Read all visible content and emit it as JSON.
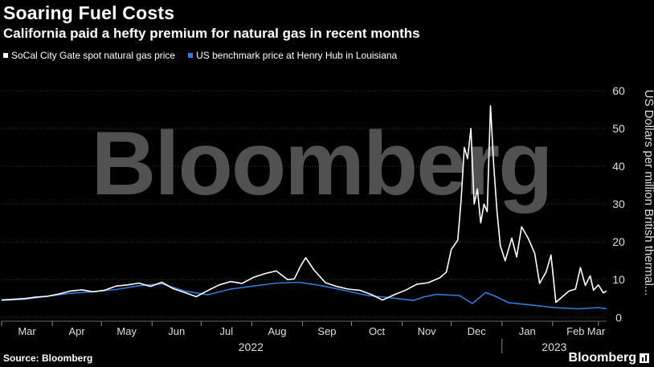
{
  "title": "Soaring Fuel Costs",
  "subtitle": "California paid a hefty premium for natural gas in recent months",
  "source": "Source: Bloomberg",
  "footer_brand": "Bloomberg",
  "watermark": "Bloomberg",
  "colors": {
    "background": "#000000",
    "socal": "#ffffff",
    "henry": "#2f7bdc",
    "grid": "#444444"
  },
  "chart_data": {
    "type": "line",
    "ylabel": "US Dollars per million British thermal...",
    "y_ticks": [
      0,
      10,
      20,
      30,
      40,
      50,
      60
    ],
    "ylim": [
      -1,
      67
    ],
    "x_range": [
      "2022-03-01",
      "2023-03-06"
    ],
    "month_labels": [
      {
        "date": "2022-03-01",
        "label": "Mar"
      },
      {
        "date": "2022-04-01",
        "label": "Apr"
      },
      {
        "date": "2022-05-01",
        "label": "May"
      },
      {
        "date": "2022-06-01",
        "label": "Jun"
      },
      {
        "date": "2022-07-01",
        "label": "Jul"
      },
      {
        "date": "2022-08-01",
        "label": "Aug"
      },
      {
        "date": "2022-09-01",
        "label": "Sep"
      },
      {
        "date": "2022-10-01",
        "label": "Oct"
      },
      {
        "date": "2022-11-01",
        "label": "Nov"
      },
      {
        "date": "2022-12-01",
        "label": "Dec"
      },
      {
        "date": "2023-01-01",
        "label": "Jan"
      },
      {
        "date": "2023-02-01",
        "label": "Feb"
      },
      {
        "date": "2023-03-01",
        "label": "Mar"
      }
    ],
    "year_labels": [
      {
        "from": "2022-03-01",
        "to": "2022-12-31",
        "label": "2022"
      },
      {
        "from": "2023-01-01",
        "to": "2023-03-06",
        "label": "2023"
      }
    ],
    "grid": true,
    "legend_position": "top-left",
    "series": [
      {
        "name": "SoCal City Gate spot natural gas price",
        "color": "#ffffff",
        "points": [
          [
            "2022-03-01",
            4.6
          ],
          [
            "2022-03-08",
            4.8
          ],
          [
            "2022-03-15",
            5.0
          ],
          [
            "2022-03-22",
            5.4
          ],
          [
            "2022-03-29",
            5.6
          ],
          [
            "2022-04-05",
            6.2
          ],
          [
            "2022-04-12",
            7.0
          ],
          [
            "2022-04-19",
            7.3
          ],
          [
            "2022-04-26",
            6.8
          ],
          [
            "2022-05-03",
            7.2
          ],
          [
            "2022-05-10",
            8.3
          ],
          [
            "2022-05-17",
            8.6
          ],
          [
            "2022-05-24",
            9.1
          ],
          [
            "2022-05-31",
            8.2
          ],
          [
            "2022-06-07",
            9.3
          ],
          [
            "2022-06-14",
            7.6
          ],
          [
            "2022-06-21",
            6.6
          ],
          [
            "2022-06-28",
            5.5
          ],
          [
            "2022-07-05",
            7.1
          ],
          [
            "2022-07-12",
            8.6
          ],
          [
            "2022-07-19",
            9.5
          ],
          [
            "2022-07-26",
            9.0
          ],
          [
            "2022-08-02",
            10.6
          ],
          [
            "2022-08-09",
            11.6
          ],
          [
            "2022-08-16",
            12.3
          ],
          [
            "2022-08-23",
            10.0
          ],
          [
            "2022-08-27",
            10.2
          ],
          [
            "2022-08-31",
            13.7
          ],
          [
            "2022-09-03",
            15.8
          ],
          [
            "2022-09-08",
            12.6
          ],
          [
            "2022-09-15",
            9.2
          ],
          [
            "2022-09-22",
            8.2
          ],
          [
            "2022-09-29",
            7.5
          ],
          [
            "2022-10-06",
            7.2
          ],
          [
            "2022-10-13",
            6.1
          ],
          [
            "2022-10-20",
            4.6
          ],
          [
            "2022-10-27",
            6.0
          ],
          [
            "2022-11-03",
            7.2
          ],
          [
            "2022-11-10",
            8.8
          ],
          [
            "2022-11-17",
            9.2
          ],
          [
            "2022-11-24",
            10.5
          ],
          [
            "2022-11-28",
            12.0
          ],
          [
            "2022-12-01",
            18.0
          ],
          [
            "2022-12-03",
            19.2
          ],
          [
            "2022-12-05",
            20.5
          ],
          [
            "2022-12-07",
            31.0
          ],
          [
            "2022-12-09",
            45.0
          ],
          [
            "2022-12-11",
            42.0
          ],
          [
            "2022-12-13",
            50.0
          ],
          [
            "2022-12-15",
            30.0
          ],
          [
            "2022-12-17",
            34.0
          ],
          [
            "2022-12-19",
            25.0
          ],
          [
            "2022-12-21",
            30.0
          ],
          [
            "2022-12-23",
            28.0
          ],
          [
            "2022-12-25",
            56.0
          ],
          [
            "2022-12-27",
            40.0
          ],
          [
            "2022-12-29",
            28.0
          ],
          [
            "2022-12-31",
            19.0
          ],
          [
            "2023-01-03",
            15.0
          ],
          [
            "2023-01-07",
            21.0
          ],
          [
            "2023-01-10",
            16.0
          ],
          [
            "2023-01-13",
            24.0
          ],
          [
            "2023-01-17",
            21.0
          ],
          [
            "2023-01-21",
            17.0
          ],
          [
            "2023-01-24",
            9.0
          ],
          [
            "2023-01-28",
            12.0
          ],
          [
            "2023-01-31",
            16.5
          ],
          [
            "2023-02-03",
            4.0
          ],
          [
            "2023-02-07",
            5.5
          ],
          [
            "2023-02-11",
            7.0
          ],
          [
            "2023-02-15",
            7.5
          ],
          [
            "2023-02-18",
            13.2
          ],
          [
            "2023-02-21",
            8.5
          ],
          [
            "2023-02-24",
            11.0
          ],
          [
            "2023-02-26",
            7.2
          ],
          [
            "2023-03-01",
            8.6
          ],
          [
            "2023-03-04",
            6.5
          ],
          [
            "2023-03-06",
            7.0
          ]
        ]
      },
      {
        "name": "US benchmark price at Henry Hub in Louisiana",
        "color": "#2f7bdc",
        "points": [
          [
            "2022-03-01",
            4.5
          ],
          [
            "2022-03-15",
            4.8
          ],
          [
            "2022-03-29",
            5.6
          ],
          [
            "2022-04-12",
            6.4
          ],
          [
            "2022-04-26",
            6.8
          ],
          [
            "2022-05-10",
            7.4
          ],
          [
            "2022-05-24",
            8.4
          ],
          [
            "2022-06-07",
            8.9
          ],
          [
            "2022-06-21",
            7.0
          ],
          [
            "2022-07-05",
            6.0
          ],
          [
            "2022-07-19",
            7.5
          ],
          [
            "2022-08-02",
            8.3
          ],
          [
            "2022-08-16",
            9.1
          ],
          [
            "2022-08-30",
            9.3
          ],
          [
            "2022-09-13",
            8.4
          ],
          [
            "2022-09-27",
            7.1
          ],
          [
            "2022-10-11",
            5.8
          ],
          [
            "2022-10-25",
            5.2
          ],
          [
            "2022-11-08",
            4.5
          ],
          [
            "2022-11-14",
            5.4
          ],
          [
            "2022-11-22",
            6.1
          ],
          [
            "2022-12-06",
            5.8
          ],
          [
            "2022-12-14",
            3.7
          ],
          [
            "2022-12-22",
            6.6
          ],
          [
            "2022-12-28",
            5.6
          ],
          [
            "2023-01-05",
            3.9
          ],
          [
            "2023-01-19",
            3.3
          ],
          [
            "2023-02-02",
            2.6
          ],
          [
            "2023-02-16",
            2.3
          ],
          [
            "2023-03-01",
            2.6
          ],
          [
            "2023-03-06",
            2.3
          ]
        ]
      }
    ]
  }
}
